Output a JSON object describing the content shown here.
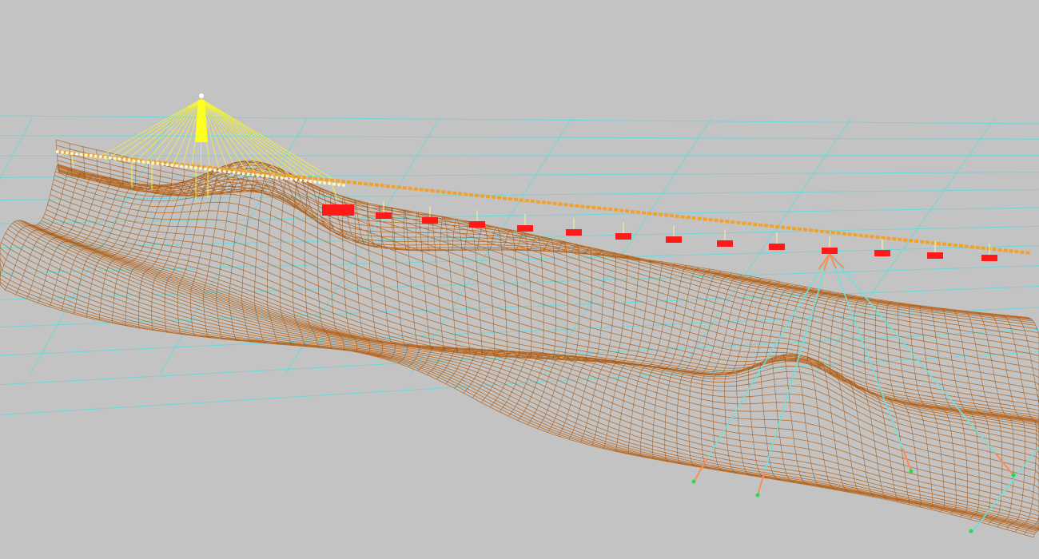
{
  "viewport": {
    "background": "#c3c3c3",
    "content": "3d-wireframe-bridge-terrain-model"
  },
  "colors": {
    "terrain_mesh": "#b8651c",
    "terrain_mesh_dark": "#8f4a10",
    "reference_grid": "#5fd9dc",
    "cable_stays": "#f2f23a",
    "pylon": "#ffff20",
    "deck": "#f2a126",
    "deck_nodes": "#fff4c8",
    "pier_caps": "#ff1a1a",
    "pier_legs": "#6ee0dc",
    "pier_supports": "#ff8a55",
    "support_nodes": "#22dd44"
  },
  "icons": {
    "pylon": "bridge-pylon-icon",
    "pier": "pier-cap-icon",
    "node": "structural-node-icon"
  }
}
